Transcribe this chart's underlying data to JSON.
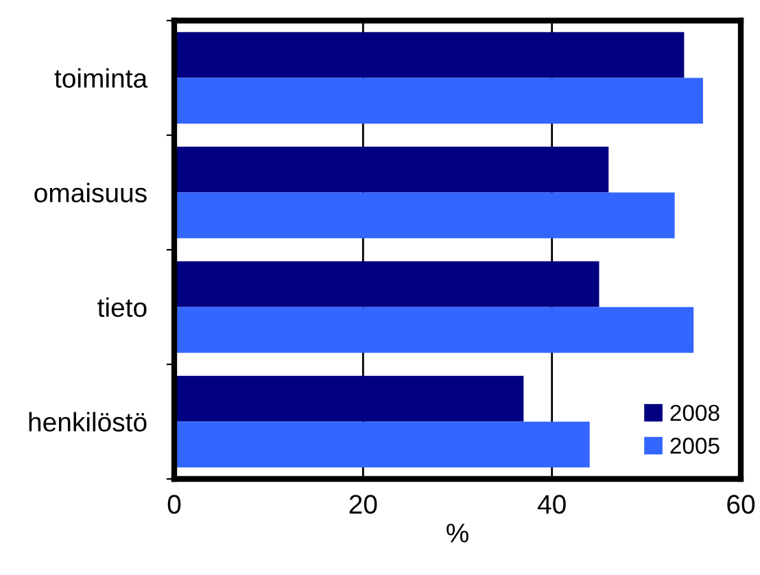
{
  "chart_data": {
    "type": "bar",
    "orientation": "horizontal",
    "xlabel": "%",
    "categories": [
      "toiminta",
      "omaisuus",
      "tieto",
      "henkilöstö"
    ],
    "series": [
      {
        "name": "2008",
        "color": "#000080",
        "values": [
          54,
          46,
          45,
          37
        ]
      },
      {
        "name": "2005",
        "color": "#3366ff",
        "values": [
          56,
          53,
          55,
          44
        ]
      }
    ],
    "xlim": [
      0,
      60
    ],
    "xticks": [
      0,
      20,
      40,
      60
    ],
    "grid": "x",
    "legend": "bottom right"
  }
}
